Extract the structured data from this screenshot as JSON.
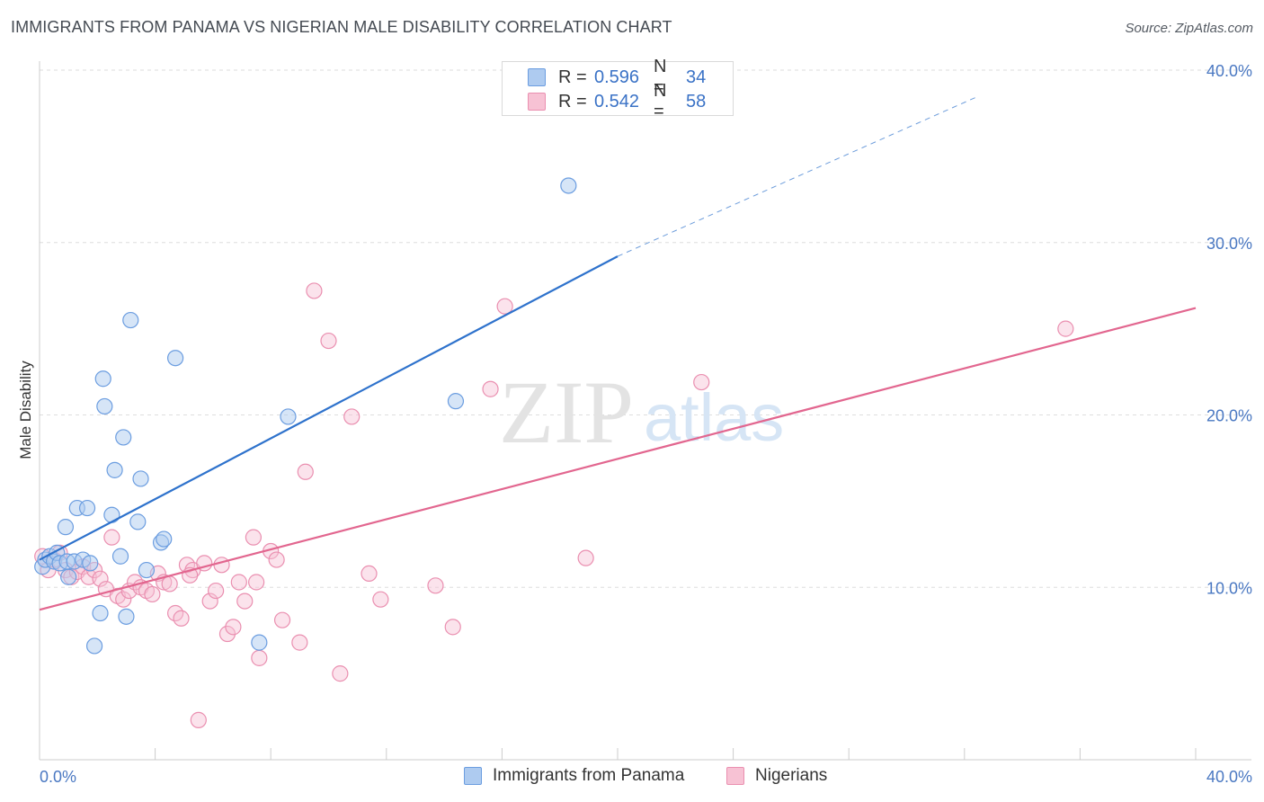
{
  "header": {
    "title": "IMMIGRANTS FROM PANAMA VS NIGERIAN MALE DISABILITY CORRELATION CHART",
    "source": "Source: ZipAtlas.com"
  },
  "watermark": {
    "zip": "ZIP",
    "atlas": "atlas"
  },
  "colors": {
    "blue_fill": "#aecbf0",
    "blue_stroke": "#6b9de0",
    "blue_line": "#2e72cc",
    "pink_fill": "#f7c2d4",
    "pink_stroke": "#ea8fb0",
    "pink_line": "#e2668f",
    "tick_text": "#4a78c2",
    "grid": "#dddddd"
  },
  "legend": {
    "rows": [
      {
        "r_label": "R =",
        "r_value": "0.596",
        "n_label": "N =",
        "n_value": "34"
      },
      {
        "r_label": "R =",
        "r_value": "0.542",
        "n_label": "N =",
        "n_value": "58"
      }
    ]
  },
  "bottom_legend": {
    "series1": "Immigrants from Panama",
    "series2": "Nigerians"
  },
  "chart_data": {
    "type": "scatter",
    "title": "IMMIGRANTS FROM PANAMA VS NIGERIAN MALE DISABILITY CORRELATION CHART",
    "xlabel": "",
    "ylabel": "Male Disability",
    "xlim": [
      0,
      40
    ],
    "ylim": [
      0,
      40
    ],
    "x_tick_labels": [
      "0.0%",
      "40.0%"
    ],
    "y_ticks": [
      10,
      20,
      30,
      40
    ],
    "y_tick_labels": [
      "10.0%",
      "20.0%",
      "30.0%",
      "40.0%"
    ],
    "grid": true,
    "series": [
      {
        "name": "Immigrants from Panama",
        "r": 0.596,
        "n": 34,
        "trend": {
          "x_start": 0,
          "y_start": 11.6,
          "x_solid_end": 20,
          "y_solid_end": 29.2,
          "x_dash_end": 32.5,
          "y_dash_end": 38.5
        },
        "points": [
          [
            0.1,
            11.2
          ],
          [
            0.2,
            11.6
          ],
          [
            0.35,
            11.8
          ],
          [
            0.5,
            11.5
          ],
          [
            0.6,
            12.0
          ],
          [
            0.7,
            11.4
          ],
          [
            0.9,
            13.5
          ],
          [
            0.95,
            11.5
          ],
          [
            1.0,
            10.6
          ],
          [
            1.2,
            11.5
          ],
          [
            1.3,
            14.6
          ],
          [
            1.5,
            11.6
          ],
          [
            1.65,
            14.6
          ],
          [
            1.75,
            11.4
          ],
          [
            1.9,
            6.6
          ],
          [
            2.1,
            8.5
          ],
          [
            2.25,
            20.5
          ],
          [
            2.5,
            14.2
          ],
          [
            2.6,
            16.8
          ],
          [
            2.8,
            11.8
          ],
          [
            2.9,
            18.7
          ],
          [
            3.0,
            8.3
          ],
          [
            3.15,
            25.5
          ],
          [
            3.4,
            13.8
          ],
          [
            3.5,
            16.3
          ],
          [
            3.7,
            11.0
          ],
          [
            4.2,
            12.6
          ],
          [
            4.3,
            12.8
          ],
          [
            4.7,
            23.3
          ],
          [
            7.6,
            6.8
          ],
          [
            8.6,
            19.9
          ],
          [
            14.4,
            20.8
          ],
          [
            18.3,
            33.3
          ],
          [
            2.2,
            22.1
          ]
        ]
      },
      {
        "name": "Nigerians",
        "r": 0.542,
        "n": 58,
        "trend": {
          "x_start": 0,
          "y_start": 8.7,
          "x_end": 40,
          "y_end": 26.2
        },
        "points": [
          [
            0.1,
            11.8
          ],
          [
            0.3,
            11.0
          ],
          [
            0.5,
            11.6
          ],
          [
            0.7,
            12.0
          ],
          [
            0.9,
            11.0
          ],
          [
            1.1,
            10.6
          ],
          [
            1.3,
            10.9
          ],
          [
            1.5,
            11.2
          ],
          [
            1.7,
            10.6
          ],
          [
            1.9,
            11.0
          ],
          [
            2.1,
            10.5
          ],
          [
            2.3,
            9.9
          ],
          [
            2.5,
            12.9
          ],
          [
            2.7,
            9.5
          ],
          [
            2.9,
            9.3
          ],
          [
            3.1,
            9.8
          ],
          [
            3.3,
            10.3
          ],
          [
            3.5,
            10.0
          ],
          [
            3.7,
            9.8
          ],
          [
            3.9,
            9.6
          ],
          [
            4.1,
            10.8
          ],
          [
            4.3,
            10.3
          ],
          [
            4.5,
            10.2
          ],
          [
            4.7,
            8.5
          ],
          [
            4.9,
            8.2
          ],
          [
            5.1,
            11.3
          ],
          [
            5.3,
            11.0
          ],
          [
            5.5,
            2.3
          ],
          [
            5.7,
            11.4
          ],
          [
            5.9,
            9.2
          ],
          [
            6.1,
            9.8
          ],
          [
            6.3,
            11.3
          ],
          [
            6.5,
            7.3
          ],
          [
            6.7,
            7.7
          ],
          [
            6.9,
            10.3
          ],
          [
            7.1,
            9.2
          ],
          [
            7.4,
            12.9
          ],
          [
            7.5,
            10.3
          ],
          [
            7.6,
            5.9
          ],
          [
            8.0,
            12.1
          ],
          [
            8.2,
            11.6
          ],
          [
            8.4,
            8.1
          ],
          [
            9.0,
            6.8
          ],
          [
            9.2,
            16.7
          ],
          [
            9.5,
            27.2
          ],
          [
            10.0,
            24.3
          ],
          [
            10.4,
            5.0
          ],
          [
            10.8,
            19.9
          ],
          [
            11.4,
            10.8
          ],
          [
            11.8,
            9.3
          ],
          [
            13.7,
            10.1
          ],
          [
            14.3,
            7.7
          ],
          [
            15.6,
            21.5
          ],
          [
            16.1,
            26.3
          ],
          [
            18.9,
            11.7
          ],
          [
            22.9,
            21.9
          ],
          [
            35.5,
            25.0
          ],
          [
            5.2,
            10.7
          ]
        ]
      }
    ]
  }
}
